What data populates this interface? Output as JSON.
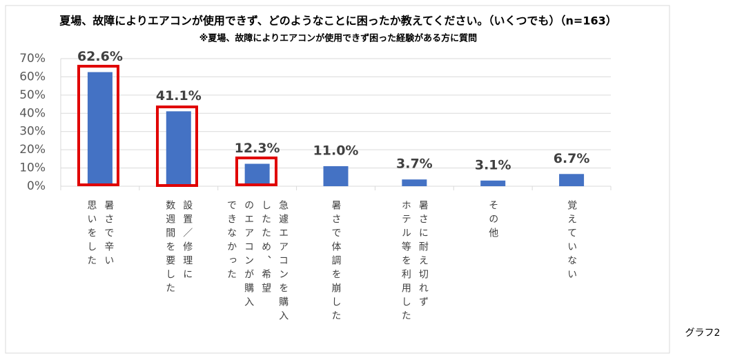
{
  "chart_data": {
    "type": "bar",
    "title": "夏場、故障によりエアコンが使用できず、どのようなことに困ったか教えてください。（いくつでも）（n=163）",
    "subtitle": "※夏場、故障によりエアコンが使用できず困った経験がある方に質問",
    "caption": "グラフ2",
    "categories": [
      [
        "暑さで辛い",
        "思いをした"
      ],
      [
        "設置／修理に",
        "数週間を要した"
      ],
      [
        "急遽エアコンを購入",
        "したため、希望",
        "のエアコンが購入",
        "できなかった"
      ],
      [
        "暑さで体調を崩した"
      ],
      [
        "暑さに耐え切れず",
        "ホテル等を利用した"
      ],
      [
        "その他"
      ],
      [
        "覚えていない"
      ]
    ],
    "values": [
      62.6,
      41.1,
      12.3,
      11.0,
      3.7,
      3.1,
      6.7
    ],
    "value_labels": [
      "62.6%",
      "41.1%",
      "12.3%",
      "11.0%",
      "3.7%",
      "3.1%",
      "6.7%"
    ],
    "color": "#4472c4",
    "ylim": [
      0,
      70
    ],
    "yticks": [
      {
        "value": 0,
        "label": "0%"
      },
      {
        "value": 10,
        "label": "10%"
      },
      {
        "value": 20,
        "label": "20%"
      },
      {
        "value": 30,
        "label": "30%"
      },
      {
        "value": 40,
        "label": "40%"
      },
      {
        "value": 50,
        "label": "50%"
      },
      {
        "value": 60,
        "label": "60%"
      },
      {
        "value": 70,
        "label": "70%"
      }
    ],
    "grid": true
  }
}
